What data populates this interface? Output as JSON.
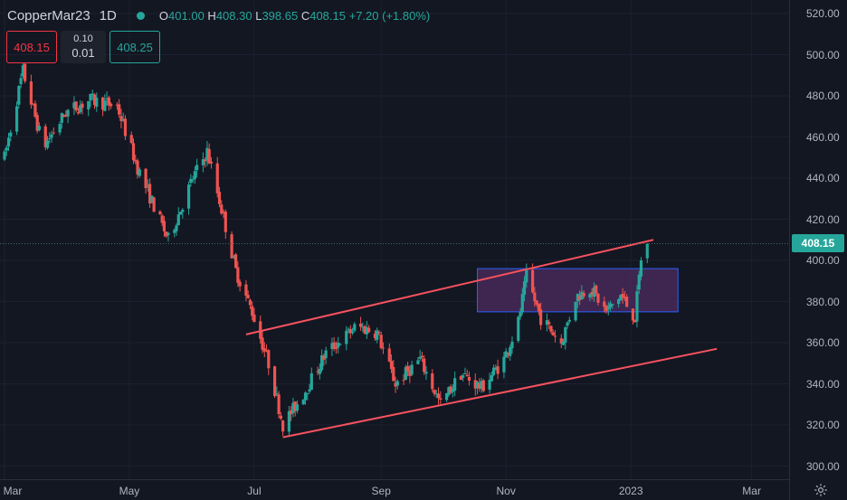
{
  "legend": {
    "symbol": "CopperMar23",
    "interval": "1D",
    "open_label": "O",
    "open": "401.00",
    "high_label": "H",
    "high": "408.30",
    "low_label": "L",
    "low": "398.65",
    "close_label": "C",
    "close": "408.15",
    "change": "+7.20 (+1.80%)"
  },
  "trade_panel": {
    "sell_price": "408.15",
    "spread_top": "0.10",
    "spread_bottom": "0.01",
    "buy_price": "408.25"
  },
  "price_scale": {
    "ticks": [
      "520.00",
      "500.00",
      "480.00",
      "460.00",
      "440.00",
      "420.00",
      "400.00",
      "380.00",
      "360.00",
      "340.00",
      "320.00",
      "300.00"
    ],
    "current_price": "408.15"
  },
  "time_scale": {
    "labels": [
      "Mar",
      "May",
      "Jul",
      "Sep",
      "Nov",
      "2023",
      "Mar"
    ]
  },
  "colors": {
    "background": "#131722",
    "up": "#26a69a",
    "down": "#ef5350",
    "trendline": "#f7525f",
    "zone_fill": "#4a2a5c",
    "zone_border": "#2962ff"
  },
  "icons": {
    "status": "market-open-dot",
    "settings": "gear-icon"
  },
  "chart_data": {
    "type": "candlestick",
    "symbol": "CopperMar23",
    "interval": "1D",
    "ylim": [
      295,
      525
    ],
    "y_ticks": [
      300,
      320,
      340,
      360,
      380,
      400,
      420,
      440,
      460,
      480,
      500,
      520
    ],
    "x_tick_labels": [
      "Mar",
      "May",
      "Jul",
      "Sep",
      "Nov",
      "2023",
      "Mar"
    ],
    "last_price": 408.15,
    "close_path": [
      {
        "date": "2022-03-01",
        "close": 450
      },
      {
        "date": "2022-03-10",
        "close": 492
      },
      {
        "date": "2022-03-20",
        "close": 455
      },
      {
        "date": "2022-03-31",
        "close": 472
      },
      {
        "date": "2022-04-12",
        "close": 478
      },
      {
        "date": "2022-04-25",
        "close": 475
      },
      {
        "date": "2022-05-05",
        "close": 445
      },
      {
        "date": "2022-05-20",
        "close": 410
      },
      {
        "date": "2022-06-01",
        "close": 440
      },
      {
        "date": "2022-06-08",
        "close": 453
      },
      {
        "date": "2022-06-15",
        "close": 425
      },
      {
        "date": "2022-06-22",
        "close": 395
      },
      {
        "date": "2022-06-30",
        "close": 375
      },
      {
        "date": "2022-07-08",
        "close": 350
      },
      {
        "date": "2022-07-15",
        "close": 320
      },
      {
        "date": "2022-07-25",
        "close": 335
      },
      {
        "date": "2022-08-05",
        "close": 355
      },
      {
        "date": "2022-08-20",
        "close": 368
      },
      {
        "date": "2022-08-30",
        "close": 365
      },
      {
        "date": "2022-09-08",
        "close": 340
      },
      {
        "date": "2022-09-20",
        "close": 352
      },
      {
        "date": "2022-09-30",
        "close": 330
      },
      {
        "date": "2022-10-10",
        "close": 345
      },
      {
        "date": "2022-10-20",
        "close": 338
      },
      {
        "date": "2022-10-31",
        "close": 352
      },
      {
        "date": "2022-11-07",
        "close": 370
      },
      {
        "date": "2022-11-11",
        "close": 392
      },
      {
        "date": "2022-11-18",
        "close": 372
      },
      {
        "date": "2022-11-28",
        "close": 360
      },
      {
        "date": "2022-12-05",
        "close": 382
      },
      {
        "date": "2022-12-12",
        "close": 387
      },
      {
        "date": "2022-12-20",
        "close": 375
      },
      {
        "date": "2022-12-27",
        "close": 383
      },
      {
        "date": "2023-01-03",
        "close": 372
      },
      {
        "date": "2023-01-06",
        "close": 401
      }
    ],
    "last_candle": {
      "open": 401.0,
      "high": 408.3,
      "low": 398.65,
      "close": 408.15
    },
    "drawings": [
      {
        "type": "trendline",
        "name": "channel-upper",
        "points": [
          {
            "date": "2022-06-27",
            "value": 364
          },
          {
            "date": "2023-01-12",
            "value": 410
          }
        ]
      },
      {
        "type": "trendline",
        "name": "channel-lower",
        "points": [
          {
            "date": "2022-07-15",
            "value": 314
          },
          {
            "date": "2023-02-12",
            "value": 357
          }
        ]
      },
      {
        "type": "rectangle",
        "name": "consolidation-zone",
        "from_date": "2022-10-18",
        "to_date": "2023-01-24",
        "top": 396,
        "bottom": 375
      }
    ]
  }
}
